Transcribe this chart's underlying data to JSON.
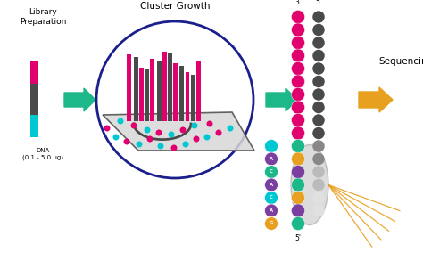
{
  "bg_color": "#ffffff",
  "lib_prep_title": "Library\nPreparation",
  "cluster_title": "Cluster Growth",
  "sequencing_title": "Sequencing",
  "dna_label": "DNA\n(0.1 - 5.0 μg)",
  "arrow_green": "#1db88a",
  "arrow_orange": "#e8a020",
  "magenta": "#e0006e",
  "cyan": "#00c8d2",
  "teal": "#00a896",
  "purple": "#7b3fa0",
  "gold": "#e8a020",
  "gray_dark": "#4a4a4a",
  "gray_med": "#888888",
  "gray_light": "#bbbbbb",
  "white_dot": "#e8e8e8",
  "navy": "#1a1f8c",
  "lens_fill": "#c0c0c0",
  "floor_fill": "#d8d8d8",
  "seq_strand_left": [
    [
      "#00c8d2",
      ""
    ],
    [
      "#7b3fa0",
      "A"
    ],
    [
      "#1db88a",
      "C"
    ],
    [
      "#7b3fa0",
      "A"
    ],
    [
      "#00c8d2",
      "C"
    ],
    [
      "#7b3fa0",
      "A"
    ],
    [
      "#e8a020",
      "G"
    ]
  ],
  "seq_strand_right_top_colors": [
    "#e0006e",
    "#e0006e",
    "#e0006e",
    "#e0006e",
    "#e0006e",
    "#e0006e",
    "#e0006e",
    "#e0006e",
    "#e0006e",
    "#e0006e"
  ],
  "seq_strand_right_mid_colors": [
    "#1db88a",
    "#e8a020",
    "#7b3fa0",
    "#1db88a",
    "#e8a020",
    "#7b3fa0",
    "#1db88a"
  ],
  "seq_strand_gray_colors": [
    "#4a4a4a",
    "#4a4a4a",
    "#4a4a4a",
    "#4a4a4a",
    "#4a4a4a",
    "#4a4a4a",
    "#4a4a4a",
    "#4a4a4a",
    "#4a4a4a",
    "#4a4a4a",
    "#888888",
    "#888888",
    "#bbbbbb",
    "#bbbbbb",
    "#e0e0e0",
    "#e0e0e0"
  ]
}
